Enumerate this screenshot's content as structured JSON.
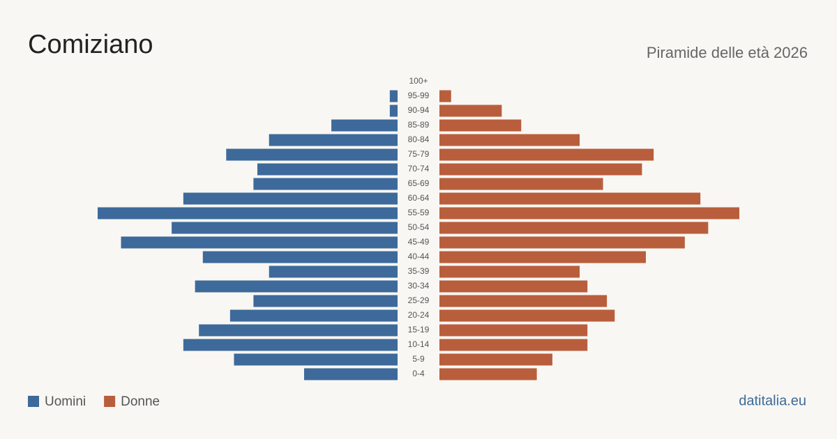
{
  "chart_data": {
    "type": "pyramid",
    "title": "Comiziano",
    "subtitle": "Piramide delle età 2026",
    "source": "datitalia.eu",
    "categories": [
      "100+",
      "95-99",
      "90-94",
      "85-89",
      "80-84",
      "75-79",
      "70-74",
      "65-69",
      "60-64",
      "55-59",
      "50-54",
      "45-49",
      "40-44",
      "35-39",
      "30-34",
      "25-29",
      "20-24",
      "15-19",
      "10-14",
      "5-9",
      "0-4"
    ],
    "series": [
      {
        "name": "Uomini",
        "color": "#3d6a9a",
        "values": [
          0,
          2,
          2,
          17,
          33,
          44,
          36,
          37,
          55,
          77,
          58,
          71,
          50,
          33,
          52,
          37,
          43,
          51,
          55,
          42,
          24
        ]
      },
      {
        "name": "Donne",
        "color": "#b95e3c",
        "values": [
          0,
          3,
          16,
          21,
          36,
          55,
          52,
          42,
          67,
          77,
          69,
          63,
          53,
          36,
          38,
          43,
          45,
          38,
          38,
          29,
          25
        ]
      }
    ]
  }
}
